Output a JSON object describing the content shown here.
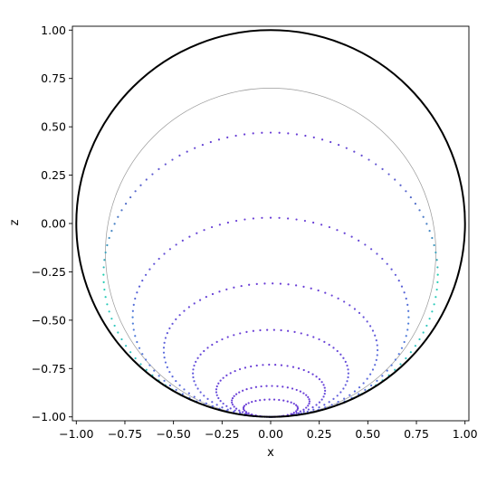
{
  "chart_data": {
    "type": "scatter",
    "title": "",
    "xlabel": "x",
    "ylabel": "z",
    "xlim": [
      -1.02,
      1.02
    ],
    "ylim": [
      -1.02,
      1.02
    ],
    "grid": false,
    "xticks": [
      -1.0,
      -0.75,
      -0.5,
      -0.25,
      0.0,
      0.25,
      0.5,
      0.75,
      1.0
    ],
    "yticks": [
      -1.0,
      -0.75,
      -0.5,
      -0.25,
      0.0,
      0.25,
      0.5,
      0.75,
      1.0
    ],
    "xtick_labels": [
      "−1.00",
      "−0.75",
      "−0.50",
      "−0.25",
      "0.00",
      "0.25",
      "0.50",
      "0.75",
      "1.00"
    ],
    "ytick_labels": [
      "−1.00",
      "−0.75",
      "−0.50",
      "−0.25",
      "0.00",
      "0.25",
      "0.50",
      "0.75",
      "1.00"
    ],
    "boundary_circle": {
      "cx": 0.0,
      "cz": 0.0,
      "r": 1.0,
      "color": "#000000"
    },
    "guide_circle": {
      "cx": 0.0,
      "cz": -0.15,
      "r": 0.85,
      "color": "#999999"
    },
    "series": [
      {
        "points": 120,
        "cx": 0.0,
        "cz": -0.265,
        "rx": 0.86,
        "rz": 0.735,
        "color_top": "#6a3dd6",
        "color_side": "#20d0b0",
        "color_bottom": "#3bc0c8"
      },
      {
        "points": 100,
        "cx": 0.0,
        "cz": -0.485,
        "rx": 0.71,
        "rz": 0.515,
        "color_top": "#6a3dd6",
        "color_side": "#4a80d8",
        "color_bottom": "#5a70dc"
      },
      {
        "points": 85,
        "cx": 0.0,
        "cz": -0.655,
        "rx": 0.55,
        "rz": 0.345,
        "color_top": "#6a3dd6",
        "color_side": "#5a6ddc",
        "color_bottom": "#5c68dc"
      },
      {
        "points": 70,
        "cx": 0.0,
        "cz": -0.775,
        "rx": 0.4,
        "rz": 0.225,
        "color_top": "#6a3dd6",
        "color_side": "#6258dc",
        "color_bottom": "#6060dc"
      },
      {
        "points": 55,
        "cx": 0.0,
        "cz": -0.865,
        "rx": 0.28,
        "rz": 0.135,
        "color_top": "#6a3dd6",
        "color_side": "#6648da",
        "color_bottom": "#6452da"
      },
      {
        "points": 45,
        "cx": 0.0,
        "cz": -0.92,
        "rx": 0.2,
        "rz": 0.08,
        "color_top": "#6a3dd6",
        "color_side": "#6a40d8",
        "color_bottom": "#6844d8"
      },
      {
        "points": 35,
        "cx": 0.0,
        "cz": -0.955,
        "rx": 0.14,
        "rz": 0.045,
        "color_top": "#6a3dd6",
        "color_side": "#6a3dd6",
        "color_bottom": "#6a3dd6"
      }
    ]
  }
}
